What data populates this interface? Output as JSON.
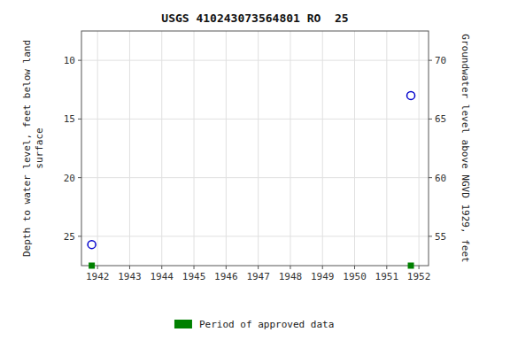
{
  "chart_data": {
    "type": "scatter",
    "title": "USGS 410243073564801 RO  25",
    "y_label": "Depth to water level, feet below land\nsurface",
    "y2_label": "Groundwater level above NGVD 1929, feet",
    "xlim": [
      1941.5,
      1952.3
    ],
    "xticks": [
      1942,
      1943,
      1944,
      1945,
      1946,
      1947,
      1948,
      1949,
      1950,
      1951,
      1952
    ],
    "ylim": [
      27.5,
      7.5
    ],
    "yticks": [
      10,
      15,
      20,
      25
    ],
    "y2lim": [
      52.5,
      72.5
    ],
    "y2ticks": [
      55,
      60,
      65,
      70
    ],
    "grid": true,
    "legend": "bottom",
    "series": [
      {
        "color": "#0000cc",
        "marker": "circle",
        "x": [
          1941.82,
          1951.75
        ],
        "values": [
          25.7,
          13.0
        ]
      },
      {
        "name": "Period of approved data",
        "color": "#008000",
        "marker": "square",
        "x": [
          1941.82,
          1951.75
        ],
        "values": [
          27.5,
          27.5
        ]
      }
    ]
  }
}
